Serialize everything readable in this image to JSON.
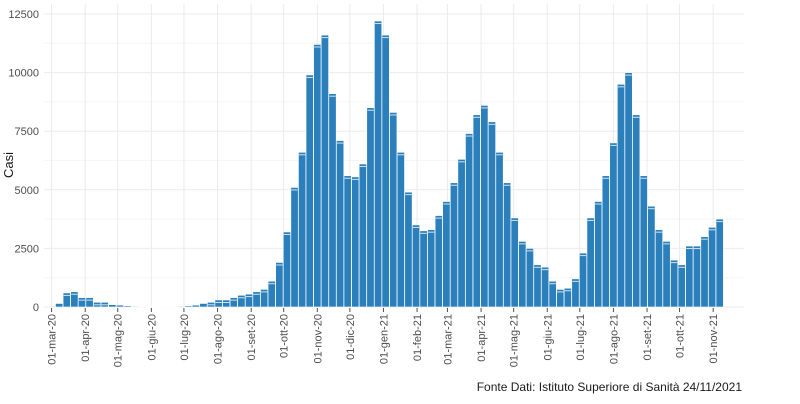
{
  "chart_data": {
    "type": "bar",
    "ylabel": "Casi",
    "xlabel": "",
    "caption": "Fonte Dati: Istituto Superiore di Sanità 24/11/2021",
    "ylim": [
      0,
      12500
    ],
    "yticks": [
      0,
      2500,
      5000,
      7500,
      10000,
      12500
    ],
    "ytick_labels": [
      "0",
      "2500",
      "5000",
      "7500",
      "10000",
      "12500"
    ],
    "xticks": [
      {
        "label": "01-mar-20",
        "week": 0
      },
      {
        "label": "01-apr-20",
        "week": 4.43
      },
      {
        "label": "01-mag-20",
        "week": 8.71
      },
      {
        "label": "01-giu-20",
        "week": 13.14
      },
      {
        "label": "01-lug-20",
        "week": 17.43
      },
      {
        "label": "01-ago-20",
        "week": 21.86
      },
      {
        "label": "01-set-20",
        "week": 26.29
      },
      {
        "label": "01-ott-20",
        "week": 30.57
      },
      {
        "label": "01-nov-20",
        "week": 35.0
      },
      {
        "label": "01-dic-20",
        "week": 39.29
      },
      {
        "label": "01-gen-21",
        "week": 43.71
      },
      {
        "label": "01-feb-21",
        "week": 48.14
      },
      {
        "label": "01-mar-21",
        "week": 52.14
      },
      {
        "label": "01-apr-21",
        "week": 56.57
      },
      {
        "label": "01-mag-21",
        "week": 60.86
      },
      {
        "label": "01-giu-21",
        "week": 65.29
      },
      {
        "label": "01-lug-21",
        "week": 69.57
      },
      {
        "label": "01-ago-21",
        "week": 74.0
      },
      {
        "label": "01-set-21",
        "week": 78.43
      },
      {
        "label": "01-ott-21",
        "week": 82.71
      },
      {
        "label": "01-nov-21",
        "week": 87.14
      }
    ],
    "x_range_weeks": [
      -1,
      91.2
    ],
    "values": [
      30,
      150,
      600,
      650,
      400,
      400,
      200,
      200,
      100,
      80,
      50,
      30,
      20,
      15,
      15,
      20,
      20,
      30,
      50,
      80,
      150,
      200,
      300,
      300,
      400,
      500,
      550,
      650,
      750,
      1100,
      1900,
      3200,
      5100,
      6600,
      9900,
      11200,
      11600,
      9100,
      7100,
      5600,
      5550,
      6100,
      8500,
      12200,
      11600,
      8300,
      6600,
      4900,
      3500,
      3250,
      3300,
      3900,
      4500,
      5300,
      6300,
      7400,
      8200,
      8600,
      7900,
      6600,
      5300,
      3800,
      2800,
      2500,
      1800,
      1700,
      1100,
      750,
      800,
      1200,
      2300,
      3800,
      4500,
      5600,
      7000,
      9500,
      10000,
      8200,
      5600,
      4300,
      3300,
      2800,
      2000,
      1800,
      2600,
      2600,
      3000,
      3400,
      3750
    ],
    "color": "#2b7fbb",
    "grid": true
  }
}
